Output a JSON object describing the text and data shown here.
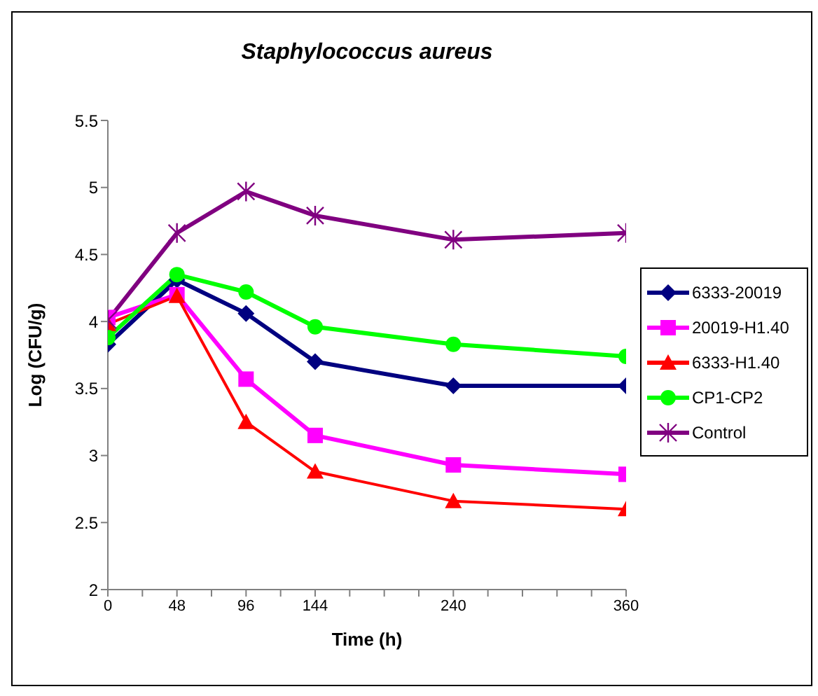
{
  "chart_data": {
    "type": "line",
    "title": "Staphylococcus aureus",
    "xlabel": "Time (h)",
    "ylabel": "Log (CFU/g)",
    "x": [
      0,
      48,
      96,
      144,
      240,
      360
    ],
    "series": [
      {
        "name": "6333-20019",
        "color": "#000080",
        "marker": "diamond",
        "values": [
          3.83,
          4.31,
          4.06,
          3.7,
          3.52,
          3.52
        ]
      },
      {
        "name": "20019-H1.40",
        "color": "#ff00ff",
        "marker": "square",
        "values": [
          4.03,
          4.2,
          3.57,
          3.15,
          2.93,
          2.86
        ]
      },
      {
        "name": "6333-H1.40",
        "color": "#ff0000",
        "marker": "triangle",
        "values": [
          3.98,
          4.19,
          3.25,
          2.88,
          2.66,
          2.6
        ]
      },
      {
        "name": "CP1-CP2",
        "color": "#00ff00",
        "marker": "circle",
        "values": [
          3.88,
          4.35,
          4.22,
          3.96,
          3.83,
          3.74
        ]
      },
      {
        "name": "Control",
        "color": "#800080",
        "marker": "cross",
        "values": [
          4.01,
          4.66,
          4.97,
          4.79,
          4.61,
          4.66
        ]
      }
    ],
    "xlim": [
      0,
      360
    ],
    "xticks": [
      0,
      {
        "value": 24,
        "label": null
      },
      48,
      {
        "value": 72,
        "label": null
      },
      96,
      {
        "value": 120,
        "label": null
      },
      144,
      {
        "value": 168,
        "label": null
      },
      {
        "value": 192,
        "label": null
      },
      {
        "value": 216,
        "label": null
      },
      240,
      {
        "value": 264,
        "label": null
      },
      {
        "value": 288,
        "label": null
      },
      {
        "value": 312,
        "label": null
      },
      {
        "value": 336,
        "label": null
      },
      360
    ],
    "ylim": [
      2,
      5.5
    ],
    "yticks": [
      2,
      2.5,
      3,
      3.5,
      4,
      4.5,
      5,
      5.5
    ],
    "grid": false,
    "legend": "right",
    "line_style": "solid"
  }
}
